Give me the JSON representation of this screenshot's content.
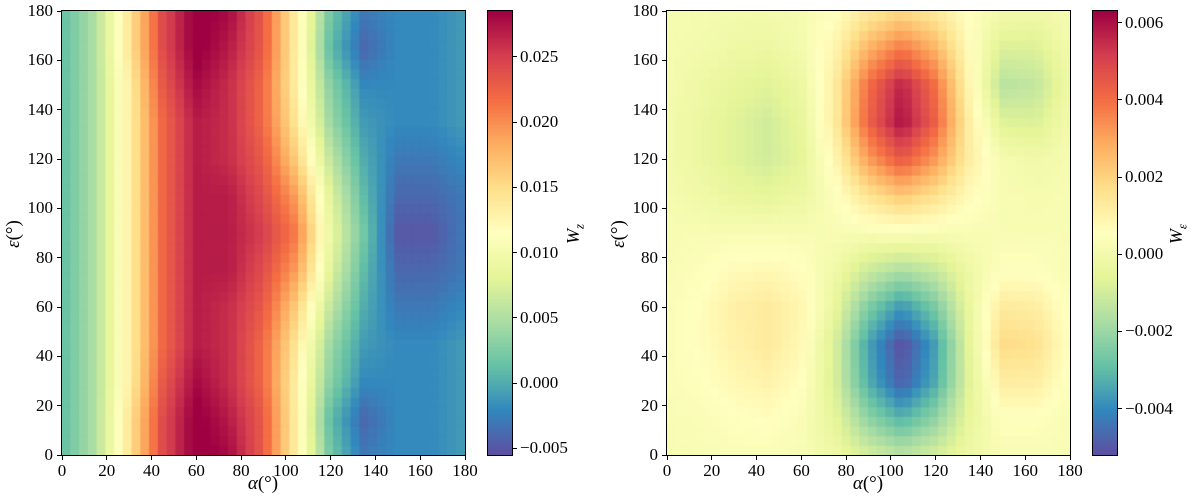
{
  "figure": {
    "background": "#ffffff"
  },
  "colormap": {
    "name": "Spectral_r",
    "stops": [
      "#5e4fa2",
      "#3288bd",
      "#66c2a5",
      "#abdda4",
      "#e6f598",
      "#ffffbf",
      "#fee08b",
      "#fdae61",
      "#f46d43",
      "#d53e4f",
      "#9e0142"
    ]
  },
  "chart_data": [
    {
      "type": "heatmap",
      "title": "",
      "xlabel_symbol": "α",
      "xlabel_unit": "(°)",
      "ylabel_symbol": "ε",
      "ylabel_unit": "(°)",
      "xlim": [
        0,
        180
      ],
      "ylim": [
        0,
        180
      ],
      "x_ticks": [
        0,
        20,
        40,
        60,
        80,
        100,
        120,
        140,
        160,
        180
      ],
      "y_ticks": [
        0,
        20,
        40,
        60,
        80,
        100,
        120,
        140,
        160,
        180
      ],
      "colorbar": {
        "label_symbol": "W",
        "label_subscript": "z",
        "vmin": -0.0055,
        "vmax": 0.0285,
        "ticks": [
          0.025,
          0.02,
          0.015,
          0.01,
          0.005,
          0.0,
          -0.005
        ],
        "tick_labels": [
          "0.025",
          "0.020",
          "0.015",
          "0.010",
          "0.005",
          "0.000",
          "−0.005"
        ]
      },
      "grid": {
        "x": [
          0,
          15,
          30,
          45,
          60,
          75,
          90,
          105,
          120,
          135,
          150,
          165,
          180
        ],
        "y": [
          0,
          15,
          30,
          45,
          60,
          75,
          90,
          105,
          120,
          135,
          150,
          165,
          180
        ],
        "value_scale": 0.001,
        "values": [
          [
            1,
            5,
            14,
            24,
            29,
            28,
            23,
            13,
            2,
            -3,
            -2,
            -2,
            -1
          ],
          [
            1,
            5,
            14,
            24,
            29,
            27,
            23,
            13,
            1,
            -4,
            -2,
            -2,
            -1
          ],
          [
            1,
            5,
            13,
            23,
            28,
            26,
            22,
            13,
            3,
            -2,
            -2,
            -2,
            -1
          ],
          [
            1,
            5,
            13,
            22,
            27,
            26,
            22,
            14,
            4,
            -1,
            -2,
            -2,
            -1
          ],
          [
            1,
            5,
            13,
            22,
            27,
            26,
            23,
            16,
            6,
            0,
            -3,
            -3,
            -2
          ],
          [
            1,
            5,
            13,
            22,
            27,
            27,
            24,
            19,
            8,
            1,
            -4,
            -4,
            -3
          ],
          [
            1,
            5,
            13,
            22,
            27,
            27,
            25,
            21,
            9,
            2,
            -5,
            -5,
            -3
          ],
          [
            1,
            5,
            13,
            22,
            27,
            27,
            24,
            19,
            8,
            1,
            -4,
            -4,
            -3
          ],
          [
            1,
            5,
            13,
            22,
            27,
            26,
            23,
            16,
            6,
            0,
            -3,
            -3,
            -2
          ],
          [
            1,
            5,
            13,
            22,
            27,
            26,
            22,
            14,
            4,
            -1,
            -2,
            -2,
            -1
          ],
          [
            1,
            5,
            13,
            23,
            28,
            26,
            22,
            13,
            3,
            -2,
            -2,
            -2,
            -1
          ],
          [
            1,
            5,
            14,
            24,
            29,
            27,
            23,
            13,
            1,
            -4,
            -2,
            -2,
            -1
          ],
          [
            1,
            5,
            14,
            24,
            29,
            28,
            23,
            13,
            2,
            -3,
            -2,
            -2,
            -1
          ]
        ]
      }
    },
    {
      "type": "heatmap",
      "title": "",
      "xlabel_symbol": "α",
      "xlabel_unit": "(°)",
      "ylabel_symbol": "ε",
      "ylabel_unit": "(°)",
      "xlim": [
        0,
        180
      ],
      "ylim": [
        0,
        180
      ],
      "x_ticks": [
        0,
        20,
        40,
        60,
        80,
        100,
        120,
        140,
        160,
        180
      ],
      "y_ticks": [
        0,
        20,
        40,
        60,
        80,
        100,
        120,
        140,
        160,
        180
      ],
      "colorbar": {
        "label_symbol": "W",
        "label_subscript": "ε",
        "vmin": -0.0052,
        "vmax": 0.0063,
        "ticks": [
          0.006,
          0.004,
          0.002,
          0.0,
          -0.002,
          -0.004
        ],
        "tick_labels": [
          "0.006",
          "0.004",
          "0.002",
          "0.000",
          "−0.002",
          "−0.004"
        ]
      },
      "grid": {
        "x": [
          0,
          15,
          30,
          45,
          60,
          75,
          90,
          105,
          120,
          135,
          150,
          165,
          180
        ],
        "y": [
          0,
          15,
          30,
          45,
          60,
          75,
          90,
          105,
          120,
          135,
          150,
          165,
          180
        ],
        "value_scale": 0.001,
        "values": [
          [
            0.2,
            0.2,
            0.3,
            0.3,
            0.2,
            -0.2,
            -0.9,
            -1.4,
            -0.9,
            -0.2,
            0.2,
            0.2,
            0.2
          ],
          [
            0.2,
            0.3,
            0.5,
            0.6,
            0.3,
            -0.5,
            -2.2,
            -3.2,
            -2.2,
            -0.5,
            0.5,
            0.5,
            0.2
          ],
          [
            0.3,
            0.5,
            0.8,
            1.0,
            0.6,
            -0.8,
            -3.3,
            -4.9,
            -3.4,
            -0.7,
            1.2,
            1.2,
            0.4
          ],
          [
            0.3,
            0.6,
            1.0,
            1.3,
            0.8,
            -0.8,
            -3.5,
            -5.2,
            -3.6,
            -0.6,
            1.8,
            1.6,
            0.5
          ],
          [
            0.3,
            0.6,
            1.1,
            1.3,
            0.9,
            -0.4,
            -2.5,
            -3.8,
            -2.6,
            -0.4,
            1.3,
            1.2,
            0.4
          ],
          [
            0.2,
            0.4,
            0.7,
            0.8,
            0.6,
            -0.1,
            -1.1,
            -1.7,
            -1.2,
            -0.2,
            0.5,
            0.5,
            0.2
          ],
          [
            0.2,
            0.2,
            0.2,
            0.2,
            0.2,
            0.2,
            0.2,
            0.3,
            0.2,
            0.2,
            0.2,
            0.2,
            0.2
          ],
          [
            0.1,
            -0.1,
            -0.4,
            -0.5,
            -0.3,
            0.4,
            1.5,
            2.2,
            1.6,
            0.7,
            0.2,
            0.1,
            0.2
          ],
          [
            0.0,
            -0.3,
            -0.7,
            -1.0,
            -0.6,
            0.8,
            3.1,
            4.5,
            3.2,
            1.2,
            0.1,
            -0.1,
            0.1
          ],
          [
            0.0,
            -0.3,
            -0.7,
            -1.0,
            -0.5,
            1.2,
            4.2,
            6.0,
            4.3,
            1.2,
            -0.7,
            -0.8,
            0.0
          ],
          [
            0.1,
            -0.2,
            -0.5,
            -0.7,
            -0.3,
            1.2,
            4.0,
            5.7,
            4.0,
            0.9,
            -1.5,
            -1.3,
            -0.2
          ],
          [
            0.1,
            0.0,
            -0.2,
            -0.3,
            0.0,
            0.9,
            2.7,
            3.8,
            2.7,
            0.7,
            -0.8,
            -0.8,
            0.0
          ],
          [
            0.1,
            0.1,
            0.0,
            0.0,
            0.1,
            0.5,
            1.3,
            1.8,
            1.3,
            0.5,
            0.0,
            -0.1,
            0.1
          ]
        ]
      }
    }
  ]
}
